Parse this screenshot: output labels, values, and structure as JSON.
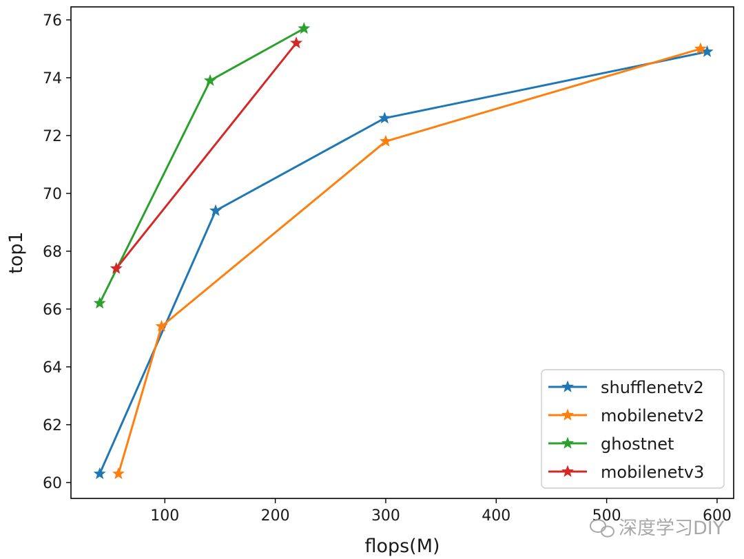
{
  "chart_data": {
    "type": "line",
    "title": "",
    "xlabel": "flops(M)",
    "ylabel": "top1",
    "xlim": [
      15,
      615
    ],
    "ylim": [
      59.45,
      76.45
    ],
    "xticks": [
      100,
      200,
      300,
      400,
      500,
      600
    ],
    "yticks": [
      60,
      62,
      64,
      66,
      68,
      70,
      72,
      74,
      76
    ],
    "grid": false,
    "legend_position": "lower-right",
    "marker": "star",
    "series": [
      {
        "name": "shufflenetv2",
        "color": "#1f77b4",
        "x": [
          41,
          146,
          299,
          591
        ],
        "y": [
          60.3,
          69.4,
          72.6,
          74.9
        ]
      },
      {
        "name": "mobilenetv2",
        "color": "#ff7f0e",
        "x": [
          58,
          97,
          300,
          585
        ],
        "y": [
          60.3,
          65.4,
          71.8,
          75.0
        ]
      },
      {
        "name": "ghostnet",
        "color": "#2ca02c",
        "x": [
          41,
          141,
          226
        ],
        "y": [
          66.2,
          73.9,
          75.7
        ]
      },
      {
        "name": "mobilenetv3",
        "color": "#d62728",
        "x": [
          56,
          219
        ],
        "y": [
          67.4,
          75.2
        ]
      }
    ]
  },
  "watermark": {
    "text": "深度学习DIY",
    "icon": "wechat-icon"
  }
}
